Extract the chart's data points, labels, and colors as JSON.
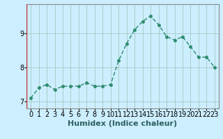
{
  "x": [
    0,
    1,
    2,
    3,
    4,
    5,
    6,
    7,
    8,
    9,
    10,
    11,
    12,
    13,
    14,
    15,
    16,
    17,
    18,
    19,
    20,
    21,
    22,
    23
  ],
  "y": [
    7.1,
    7.4,
    7.5,
    7.35,
    7.45,
    7.45,
    7.45,
    7.55,
    7.45,
    7.45,
    7.5,
    8.2,
    8.7,
    9.1,
    9.35,
    9.5,
    9.25,
    8.9,
    8.8,
    8.9,
    8.6,
    8.3,
    8.3,
    8.0
  ],
  "line_color": "#2e8b6e",
  "marker": "o",
  "marker_size": 2.5,
  "background_color": "#cceeff",
  "grid_color": "#aacccc",
  "xlabel": "Humidex (Indice chaleur)",
  "ylim": [
    6.8,
    9.85
  ],
  "xlim": [
    -0.5,
    23.5
  ],
  "yticks": [
    7,
    8,
    9
  ],
  "xticks": [
    0,
    1,
    2,
    3,
    4,
    5,
    6,
    7,
    8,
    9,
    10,
    11,
    12,
    13,
    14,
    15,
    16,
    17,
    18,
    19,
    20,
    21,
    22,
    23
  ],
  "xtick_labels": [
    "0",
    "1",
    "2",
    "3",
    "4",
    "5",
    "6",
    "7",
    "8",
    "9",
    "10",
    "11",
    "12",
    "13",
    "14",
    "15",
    "16",
    "17",
    "18",
    "19",
    "20",
    "21",
    "22",
    "23"
  ],
  "line_width": 1.0,
  "tick_fontsize": 7,
  "xlabel_fontsize": 8,
  "spine_color": "#888888",
  "left_line_color": "#cc3333"
}
